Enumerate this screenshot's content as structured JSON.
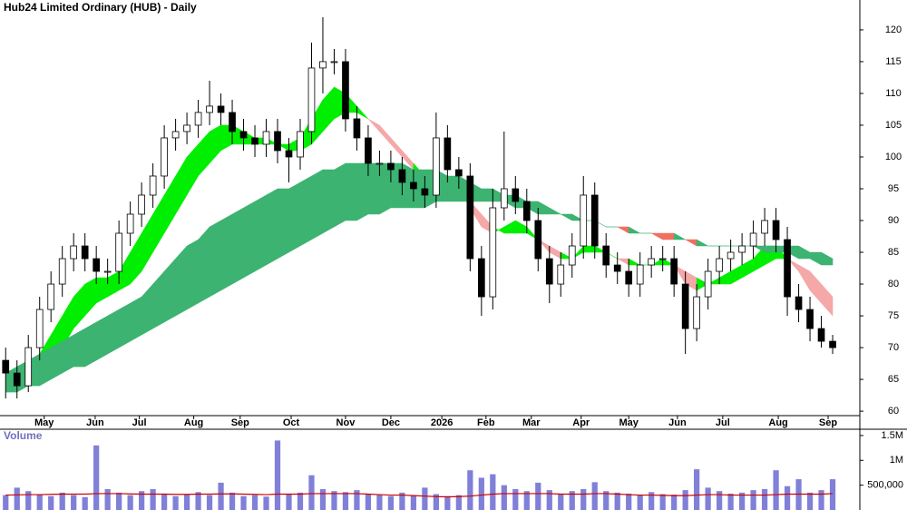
{
  "chart_data": {
    "type": "candlestick",
    "title": "Hub24 Limited Ordinary (HUB) - Daily",
    "xlim": [
      -0.5,
      75.4
    ],
    "xticks": [
      {
        "value": 3.4,
        "label": "May"
      },
      {
        "value": 7.9,
        "label": "Jun"
      },
      {
        "value": 11.8,
        "label": "Jul"
      },
      {
        "value": 16.6,
        "label": "Aug"
      },
      {
        "value": 20.7,
        "label": "Sep"
      },
      {
        "value": 25.2,
        "label": "Oct"
      },
      {
        "value": 30,
        "label": "Nov"
      },
      {
        "value": 34,
        "label": "Dec"
      },
      {
        "value": 38.5,
        "label": "2026"
      },
      {
        "value": 42.4,
        "label": "Feb"
      },
      {
        "value": 46.4,
        "label": "Mar"
      },
      {
        "value": 50.8,
        "label": "Apr"
      },
      {
        "value": 55,
        "label": "May"
      },
      {
        "value": 59.3,
        "label": "Jun"
      },
      {
        "value": 63.3,
        "label": "Jul"
      },
      {
        "value": 68.2,
        "label": "Aug"
      },
      {
        "value": 72.6,
        "label": "Sep"
      }
    ],
    "ylim": [
      59.3,
      124.7
    ],
    "yticks": [
      60,
      65,
      70,
      75,
      80,
      85,
      90,
      95,
      100,
      105,
      110,
      115,
      120
    ],
    "open": [
      68,
      66,
      64,
      70,
      76,
      80,
      84,
      86,
      84,
      82,
      82,
      88,
      91,
      94,
      97,
      103,
      104,
      105,
      107,
      108,
      107,
      104,
      103,
      102,
      104,
      101,
      100,
      104,
      114,
      115,
      115,
      106,
      103,
      99,
      99,
      98,
      96,
      95,
      94,
      103,
      98,
      97,
      84,
      78,
      92,
      95,
      93,
      90,
      84,
      80,
      83,
      86,
      94,
      86,
      83,
      82,
      80,
      83,
      84,
      84,
      80,
      73,
      78,
      82,
      84,
      85,
      86,
      88,
      90,
      87,
      78,
      76,
      73,
      71
    ],
    "high": [
      70,
      68,
      72,
      78,
      82,
      86,
      88,
      88,
      86,
      84,
      90,
      93,
      96,
      99,
      105,
      106,
      107,
      109,
      112,
      110,
      109,
      106,
      105,
      106,
      106,
      103,
      106,
      118,
      122,
      117,
      117,
      108,
      105,
      101,
      101,
      100,
      98,
      97,
      107,
      105,
      100,
      99,
      86,
      95,
      104,
      97,
      95,
      92,
      86,
      85,
      88,
      97,
      96,
      88,
      85,
      84,
      85,
      86,
      86,
      86,
      82,
      80,
      84,
      86,
      87,
      88,
      90,
      92,
      92,
      89,
      80,
      78,
      75,
      72
    ],
    "low": [
      62,
      62,
      63,
      68,
      74,
      78,
      82,
      82,
      80,
      80,
      80,
      86,
      89,
      92,
      95,
      101,
      102,
      103,
      105,
      105,
      102,
      101,
      100,
      100,
      99,
      96,
      98,
      102,
      110,
      113,
      104,
      101,
      97,
      97,
      96,
      94,
      93,
      92,
      92,
      96,
      95,
      82,
      75,
      76,
      90,
      91,
      88,
      82,
      77,
      78,
      81,
      84,
      84,
      81,
      80,
      78,
      78,
      81,
      82,
      78,
      69,
      71,
      76,
      80,
      82,
      83,
      84,
      86,
      85,
      75,
      74,
      71,
      70,
      69
    ],
    "close": [
      66,
      64,
      70,
      76,
      80,
      84,
      86,
      84,
      82,
      82,
      88,
      91,
      94,
      97,
      103,
      104,
      105,
      107,
      108,
      107,
      104,
      103,
      102,
      104,
      101,
      100,
      104,
      114,
      115,
      115,
      106,
      103,
      99,
      99,
      98,
      96,
      95,
      94,
      103,
      98,
      97,
      84,
      78,
      92,
      95,
      93,
      90,
      84,
      80,
      83,
      86,
      94,
      86,
      83,
      82,
      80,
      83,
      84,
      84,
      80,
      73,
      78,
      82,
      84,
      85,
      86,
      88,
      90,
      87,
      78,
      76,
      73,
      71,
      70
    ],
    "ribbons": [
      {
        "up_color": "#00ee00",
        "down_color": "#f4a8a8",
        "a": [
          66,
          66,
          67,
          69,
          72,
          75,
          78,
          80,
          81,
          81,
          82,
          85,
          88,
          91,
          94,
          97,
          100,
          102,
          104,
          105,
          105,
          104,
          103,
          103,
          102,
          102,
          103,
          106,
          109,
          111,
          110,
          108,
          106,
          104,
          102,
          100,
          98,
          97,
          97,
          96,
          95,
          92,
          89,
          88,
          89,
          90,
          89,
          87,
          85,
          84,
          84,
          86,
          86,
          85,
          84,
          83,
          83,
          83,
          84,
          83,
          80,
          79,
          80,
          81,
          82,
          83,
          84,
          86,
          86,
          84,
          82,
          79,
          77,
          75
        ],
        "b": [
          65,
          65,
          65,
          66,
          68,
          70,
          73,
          75,
          77,
          78,
          79,
          80,
          82,
          85,
          88,
          91,
          94,
          97,
          99,
          101,
          102,
          102,
          102,
          102,
          102,
          101,
          101,
          102,
          104,
          106,
          107,
          107,
          106,
          105,
          103,
          101,
          99,
          97,
          96,
          96,
          95,
          93,
          91,
          89,
          88,
          88,
          88,
          87,
          86,
          85,
          84,
          85,
          85,
          85,
          84,
          84,
          83,
          83,
          83,
          83,
          82,
          81,
          80,
          80,
          80,
          81,
          82,
          83,
          84,
          84,
          83,
          82,
          80,
          78
        ]
      },
      {
        "up_color": "#3cb371",
        "down_color": "#f07060",
        "a": [
          66,
          67,
          68,
          69,
          70,
          71,
          72,
          73,
          74,
          75,
          76,
          77,
          78,
          80,
          82,
          84,
          86,
          87,
          89,
          90,
          91,
          92,
          93,
          94,
          95,
          95,
          96,
          97,
          98,
          98,
          99,
          99,
          99,
          99,
          99,
          99,
          98,
          98,
          98,
          97,
          97,
          96,
          95,
          95,
          94,
          94,
          93,
          93,
          92,
          91,
          91,
          90,
          90,
          89,
          89,
          88,
          88,
          88,
          87,
          87,
          87,
          86,
          86,
          86,
          86,
          86,
          86,
          86,
          86,
          86,
          86,
          85,
          85,
          84
        ],
        "b": [
          63,
          63,
          64,
          64,
          65,
          66,
          67,
          67,
          68,
          69,
          70,
          71,
          72,
          73,
          74,
          75,
          76,
          77,
          78,
          79,
          80,
          81,
          82,
          83,
          84,
          85,
          86,
          87,
          88,
          89,
          90,
          90,
          91,
          91,
          92,
          92,
          92,
          92,
          93,
          93,
          93,
          93,
          93,
          93,
          93,
          92,
          92,
          91,
          91,
          91,
          90,
          90,
          90,
          89,
          89,
          89,
          88,
          88,
          88,
          88,
          87,
          87,
          86,
          86,
          86,
          86,
          86,
          85,
          85,
          85,
          84,
          84,
          83,
          83
        ]
      }
    ],
    "volume": {
      "title": "Volume",
      "color": "#8080d8",
      "ma_color": "#cc0000",
      "ylim": [
        0,
        1590000
      ],
      "yticks": [
        {
          "value": 1500000,
          "label": "1.5M"
        },
        {
          "value": 1000000,
          "label": "1M"
        },
        {
          "value": 500000,
          "label": "500,000"
        }
      ],
      "values": [
        300000,
        450000,
        380000,
        320000,
        280000,
        350000,
        300000,
        260000,
        1300000,
        420000,
        350000,
        300000,
        380000,
        420000,
        330000,
        280000,
        310000,
        360000,
        300000,
        550000,
        350000,
        280000,
        300000,
        270000,
        1400000,
        320000,
        350000,
        700000,
        420000,
        380000,
        360000,
        400000,
        330000,
        300000,
        280000,
        350000,
        300000,
        450000,
        320000,
        280000,
        300000,
        800000,
        650000,
        720000,
        500000,
        420000,
        380000,
        550000,
        400000,
        330000,
        380000,
        420000,
        560000,
        380000,
        350000,
        330000,
        300000,
        360000,
        320000,
        310000,
        400000,
        820000,
        450000,
        380000,
        330000,
        350000,
        400000,
        420000,
        800000,
        480000,
        620000,
        350000,
        400000,
        620000
      ],
      "ma": [
        300000,
        305000,
        310000,
        310000,
        315000,
        320000,
        320000,
        320000,
        330000,
        330000,
        330000,
        325000,
        320000,
        320000,
        320000,
        315000,
        315000,
        320000,
        320000,
        325000,
        325000,
        320000,
        315000,
        310000,
        320000,
        320000,
        320000,
        330000,
        330000,
        330000,
        330000,
        330000,
        320000,
        310000,
        300000,
        300000,
        290000,
        280000,
        270000,
        265000,
        270000,
        280000,
        300000,
        320000,
        330000,
        330000,
        330000,
        330000,
        330000,
        320000,
        320000,
        320000,
        330000,
        330000,
        320000,
        310000,
        300000,
        300000,
        295000,
        290000,
        290000,
        300000,
        310000,
        310000,
        300000,
        300000,
        300000,
        300000,
        310000,
        320000,
        320000,
        320000,
        320000,
        330000
      ]
    }
  }
}
